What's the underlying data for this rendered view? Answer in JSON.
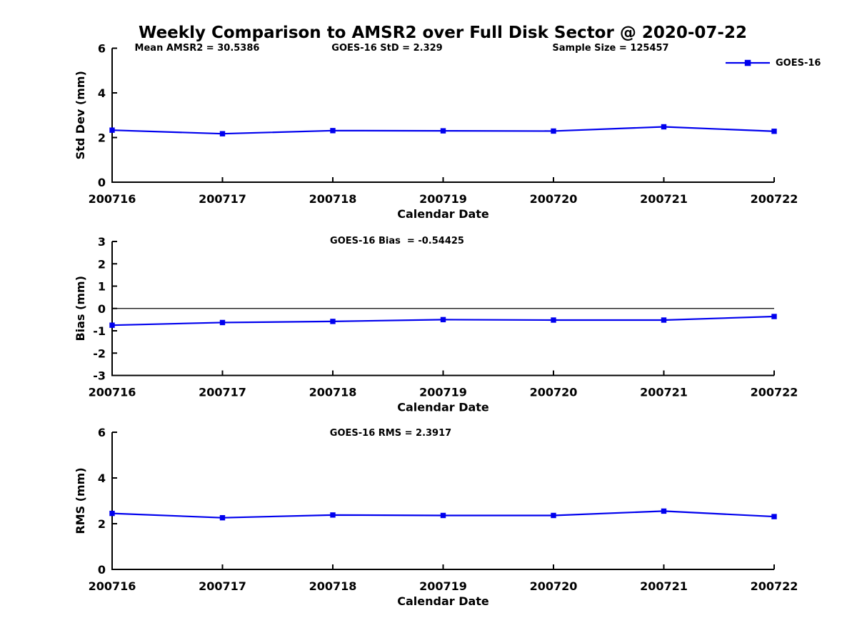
{
  "figure": {
    "title": "Weekly Comparison to AMSR2 over Full Disk Sector @ 2020-07-22"
  },
  "stats": {
    "mean_amsr2": 30.5386,
    "goes16_std": 2.329,
    "sample_size": 125457,
    "goes16_bias": -0.54425,
    "goes16_rms": 2.3917
  },
  "chart_data": [
    {
      "type": "line",
      "title": "",
      "categories": [
        "200716",
        "200717",
        "200718",
        "200719",
        "200720",
        "200721",
        "200722"
      ],
      "series": [
        {
          "name": "GOES-16",
          "color": "#0000EE",
          "marker": "square",
          "values": [
            2.33,
            2.17,
            2.31,
            2.3,
            2.29,
            2.48,
            2.28
          ]
        }
      ],
      "xlabel": "Calendar Date",
      "ylabel": "Std Dev (mm)",
      "ylim": [
        0,
        6
      ],
      "yticks": [
        0,
        2,
        4,
        6
      ],
      "grid": false,
      "legend_position": "upper right",
      "annotations": [
        "Mean AMSR2 = 30.5386",
        "GOES-16 StD = 2.329",
        "Sample Size = 125457"
      ]
    },
    {
      "type": "line",
      "title": "",
      "categories": [
        "200716",
        "200717",
        "200718",
        "200719",
        "200720",
        "200721",
        "200722"
      ],
      "series": [
        {
          "name": "GOES-16",
          "color": "#0000EE",
          "marker": "square",
          "values": [
            -0.75,
            -0.63,
            -0.58,
            -0.5,
            -0.52,
            -0.52,
            -0.36
          ]
        }
      ],
      "xlabel": "Calendar Date",
      "ylabel": "Bias (mm)",
      "ylim": [
        -3,
        3
      ],
      "yticks": [
        -3,
        -2,
        -1,
        0,
        1,
        2,
        3
      ],
      "zero_line": true,
      "grid": false,
      "annotations": [
        "GOES-16 Bias  = -0.54425"
      ]
    },
    {
      "type": "line",
      "title": "",
      "categories": [
        "200716",
        "200717",
        "200718",
        "200719",
        "200720",
        "200721",
        "200722"
      ],
      "series": [
        {
          "name": "GOES-16",
          "color": "#0000EE",
          "marker": "square",
          "values": [
            2.45,
            2.26,
            2.38,
            2.36,
            2.36,
            2.55,
            2.31
          ]
        }
      ],
      "xlabel": "Calendar Date",
      "ylabel": "RMS (mm)",
      "ylim": [
        0,
        6
      ],
      "yticks": [
        0,
        2,
        4,
        6
      ],
      "grid": false,
      "annotations": [
        "GOES-16 RMS = 2.3917"
      ]
    }
  ]
}
